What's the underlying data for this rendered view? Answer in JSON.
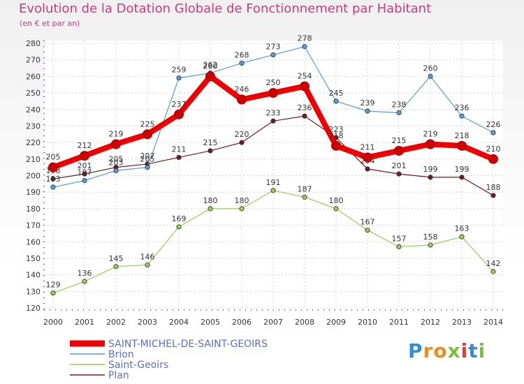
{
  "chart_data": {
    "type": "line",
    "title": "Evolution de la Dotation Globale de Fonctionnement par Habitant",
    "subtitle": "(en € et par an)",
    "xlabel": "",
    "ylabel": "",
    "ylim": [
      120,
      280
    ],
    "yticks": [
      120,
      130,
      140,
      150,
      160,
      170,
      180,
      190,
      200,
      210,
      220,
      230,
      240,
      250,
      260,
      270,
      280
    ],
    "grid": true,
    "legend": "bottom-left",
    "categories": [
      "2000",
      "2001",
      "2002",
      "2003",
      "2004",
      "2005",
      "2006",
      "2007",
      "2008",
      "2009",
      "2010",
      "2011",
      "2012",
      "2013",
      "2014"
    ],
    "series": [
      {
        "name": "Plan",
        "color": "#6b1e22",
        "values": [
          198,
          201,
          205,
          207,
          211,
          215,
          220,
          233,
          236,
          223,
          204,
          201,
          199,
          199,
          188
        ]
      },
      {
        "name": "Saint-Geoirs",
        "color": "#99cc55",
        "values": [
          129,
          136,
          145,
          146,
          169,
          180,
          180,
          191,
          187,
          180,
          167,
          157,
          158,
          163,
          142
        ]
      },
      {
        "name": "Brion",
        "color": "#5a9bd0",
        "values": [
          193,
          197,
          203,
          205,
          259,
          262,
          268,
          273,
          278,
          245,
          239,
          238,
          260,
          236,
          226
        ]
      },
      {
        "name": "SAINT-MICHEL-DE-SAINT-GEOIRS",
        "color": "#ee0000",
        "values": [
          205,
          212,
          219,
          225,
          237,
          260,
          246,
          250,
          254,
          218,
          211,
          215,
          219,
          218,
          210
        ]
      }
    ],
    "legend_order": [
      "SAINT-MICHEL-DE-SAINT-GEOIRS",
      "Brion",
      "Saint-Geoirs",
      "Plan"
    ]
  },
  "brand": {
    "letters": [
      "P",
      "r",
      "o",
      "x",
      "i",
      "t",
      "i"
    ],
    "colors": [
      "#2e8fd6",
      "#f08a1d",
      "#f08a1d",
      "#7cbf3a",
      "#e23b3b",
      "#2e8fd6",
      "#7cbf3a"
    ]
  }
}
